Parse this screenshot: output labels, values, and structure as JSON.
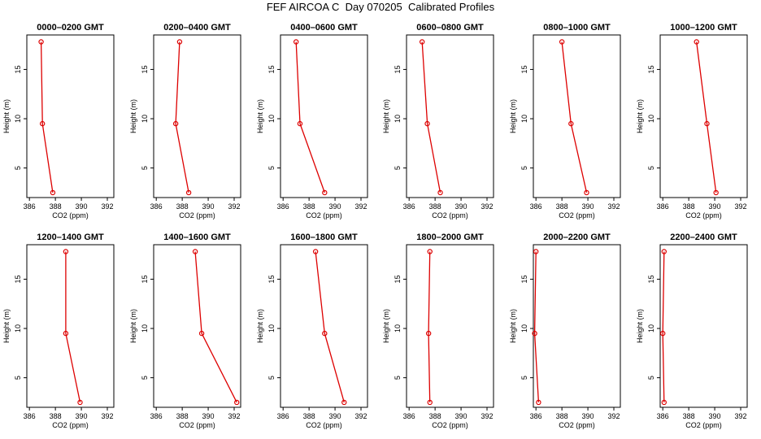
{
  "title": "FEF AIRCOA C  Day 070205  Calibrated Profiles",
  "colors": {
    "series": "#dd0000",
    "axis": "#000000"
  },
  "chart_data": [
    {
      "type": "line",
      "title": "0000–0200 GMT",
      "xlabel": "CO2 (ppm)",
      "ylabel": "Height (m)",
      "xlim": [
        385.8,
        392.5
      ],
      "ylim": [
        2,
        18.5
      ],
      "xticks": [
        386,
        388,
        390,
        392
      ],
      "yticks": [
        5,
        10,
        15
      ],
      "x": [
        387.8,
        387.0,
        386.9
      ],
      "y": [
        2.5,
        9.5,
        17.8
      ]
    },
    {
      "type": "line",
      "title": "0200–0400 GMT",
      "xlabel": "CO2 (ppm)",
      "ylabel": "Height (m)",
      "xlim": [
        385.8,
        392.5
      ],
      "ylim": [
        2,
        18.5
      ],
      "xticks": [
        386,
        388,
        390,
        392
      ],
      "yticks": [
        5,
        10,
        15
      ],
      "x": [
        388.5,
        387.5,
        387.8
      ],
      "y": [
        2.5,
        9.5,
        17.8
      ]
    },
    {
      "type": "line",
      "title": "0400–0600 GMT",
      "xlabel": "CO2 (ppm)",
      "ylabel": "Height (m)",
      "xlim": [
        385.8,
        392.5
      ],
      "ylim": [
        2,
        18.5
      ],
      "xticks": [
        386,
        388,
        390,
        392
      ],
      "yticks": [
        5,
        10,
        15
      ],
      "x": [
        389.2,
        387.3,
        387.0
      ],
      "y": [
        2.5,
        9.5,
        17.8
      ]
    },
    {
      "type": "line",
      "title": "0600–0800 GMT",
      "xlabel": "CO2 (ppm)",
      "ylabel": "Height (m)",
      "xlim": [
        385.8,
        392.5
      ],
      "ylim": [
        2,
        18.5
      ],
      "xticks": [
        386,
        388,
        390,
        392
      ],
      "yticks": [
        5,
        10,
        15
      ],
      "x": [
        388.4,
        387.4,
        387.0
      ],
      "y": [
        2.5,
        9.5,
        17.8
      ]
    },
    {
      "type": "line",
      "title": "0800–1000 GMT",
      "xlabel": "CO2 (ppm)",
      "ylabel": "Height (m)",
      "xlim": [
        385.8,
        392.5
      ],
      "ylim": [
        2,
        18.5
      ],
      "xticks": [
        386,
        388,
        390,
        392
      ],
      "yticks": [
        5,
        10,
        15
      ],
      "x": [
        389.9,
        388.7,
        388.0
      ],
      "y": [
        2.5,
        9.5,
        17.8
      ]
    },
    {
      "type": "line",
      "title": "1000–1200 GMT",
      "xlabel": "CO2 (ppm)",
      "ylabel": "Height (m)",
      "xlim": [
        385.8,
        392.5
      ],
      "ylim": [
        2,
        18.5
      ],
      "xticks": [
        386,
        388,
        390,
        392
      ],
      "yticks": [
        5,
        10,
        15
      ],
      "x": [
        390.1,
        389.4,
        388.6
      ],
      "y": [
        2.5,
        9.5,
        17.8
      ]
    },
    {
      "type": "line",
      "title": "1200–1400 GMT",
      "xlabel": "CO2 (ppm)",
      "ylabel": "Height (m)",
      "xlim": [
        385.8,
        392.5
      ],
      "ylim": [
        2,
        18.5
      ],
      "xticks": [
        386,
        388,
        390,
        392
      ],
      "yticks": [
        5,
        10,
        15
      ],
      "x": [
        389.9,
        388.8,
        388.8
      ],
      "y": [
        2.5,
        9.5,
        17.8
      ]
    },
    {
      "type": "line",
      "title": "1400–1600 GMT",
      "xlabel": "CO2 (ppm)",
      "ylabel": "Height (m)",
      "xlim": [
        385.8,
        392.5
      ],
      "ylim": [
        2,
        18.5
      ],
      "xticks": [
        386,
        388,
        390,
        392
      ],
      "yticks": [
        5,
        10,
        15
      ],
      "x": [
        392.2,
        389.5,
        389.0
      ],
      "y": [
        2.5,
        9.5,
        17.8
      ]
    },
    {
      "type": "line",
      "title": "1600–1800 GMT",
      "xlabel": "CO2 (ppm)",
      "ylabel": "Height (m)",
      "xlim": [
        385.8,
        392.5
      ],
      "ylim": [
        2,
        18.5
      ],
      "xticks": [
        386,
        388,
        390,
        392
      ],
      "yticks": [
        5,
        10,
        15
      ],
      "x": [
        390.7,
        389.2,
        388.5
      ],
      "y": [
        2.5,
        9.5,
        17.8
      ]
    },
    {
      "type": "line",
      "title": "1800–2000 GMT",
      "xlabel": "CO2 (ppm)",
      "ylabel": "Height (m)",
      "xlim": [
        385.8,
        392.5
      ],
      "ylim": [
        2,
        18.5
      ],
      "xticks": [
        386,
        388,
        390,
        392
      ],
      "yticks": [
        5,
        10,
        15
      ],
      "x": [
        387.6,
        387.5,
        387.6
      ],
      "y": [
        2.5,
        9.5,
        17.8
      ]
    },
    {
      "type": "line",
      "title": "2000–2200 GMT",
      "xlabel": "CO2 (ppm)",
      "ylabel": "Height (m)",
      "xlim": [
        385.8,
        392.5
      ],
      "ylim": [
        2,
        18.5
      ],
      "xticks": [
        386,
        388,
        390,
        392
      ],
      "yticks": [
        5,
        10,
        15
      ],
      "x": [
        386.2,
        385.9,
        386.0
      ],
      "y": [
        2.5,
        9.5,
        17.8
      ]
    },
    {
      "type": "line",
      "title": "2200–2400 GMT",
      "xlabel": "CO2 (ppm)",
      "ylabel": "Height (m)",
      "xlim": [
        385.8,
        392.5
      ],
      "ylim": [
        2,
        18.5
      ],
      "xticks": [
        386,
        388,
        390,
        392
      ],
      "yticks": [
        5,
        10,
        15
      ],
      "x": [
        386.1,
        386.0,
        386.1
      ],
      "y": [
        2.5,
        9.5,
        17.8
      ]
    }
  ]
}
